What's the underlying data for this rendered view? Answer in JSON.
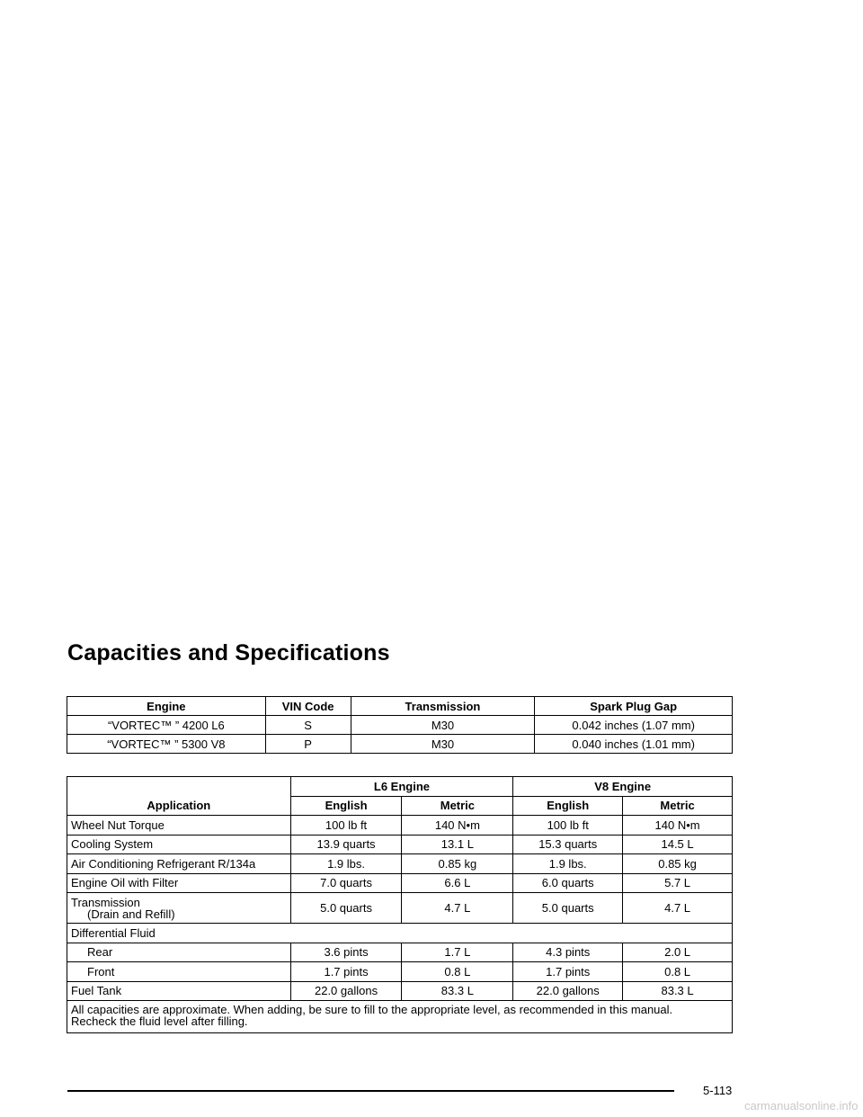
{
  "title": "Capacities and Specifications",
  "engine_table": {
    "headers": [
      "Engine",
      "VIN Code",
      "Transmission",
      "Spark Plug Gap"
    ],
    "rows": [
      [
        "“VORTEC™ ” 4200 L6",
        "S",
        "M30",
        "0.042 inches (1.07 mm)"
      ],
      [
        "“VORTEC™ ” 5300 V8",
        "P",
        "M30",
        "0.040 inches (1.01 mm)"
      ]
    ]
  },
  "capacity_table": {
    "application_header": "Application",
    "group_headers": [
      "L6 Engine",
      "V8 Engine"
    ],
    "sub_headers": [
      "English",
      "Metric",
      "English",
      "Metric"
    ],
    "rows": [
      {
        "label": "Wheel Nut Torque",
        "values": [
          "100 lb ft",
          "140 N•m",
          "100 lb ft",
          "140 N•m"
        ]
      },
      {
        "label": "Cooling System",
        "values": [
          "13.9 quarts",
          "13.1 L",
          "15.3 quarts",
          "14.5 L"
        ]
      },
      {
        "label": "Air Conditioning Refrigerant R/134a",
        "values": [
          "1.9 lbs.",
          "0.85 kg",
          "1.9 lbs.",
          "0.85 kg"
        ]
      },
      {
        "label": "Engine Oil with Filter",
        "values": [
          "7.0 quarts",
          "6.6 L",
          "6.0 quarts",
          "5.7 L"
        ]
      },
      {
        "label": "Transmission",
        "sublabel": "(Drain and Refill)",
        "values": [
          "5.0 quarts",
          "4.7 L",
          "5.0 quarts",
          "4.7 L"
        ]
      },
      {
        "label": "Differential Fluid"
      },
      {
        "label": "Rear",
        "values": [
          "3.6 pints",
          "1.7 L",
          "4.3 pints",
          "2.0 L"
        ]
      },
      {
        "label": "Front",
        "values": [
          "1.7 pints",
          "0.8 L",
          "1.7 pints",
          "0.8 L"
        ]
      },
      {
        "label": "Fuel Tank",
        "values": [
          "22.0 gallons",
          "83.3 L",
          "22.0 gallons",
          "83.3 L"
        ]
      }
    ],
    "note_line1": "All capacities are approximate. When adding, be sure to fill to the appropriate level, as recommended in this manual.",
    "note_line2": "Recheck the fluid level after filling."
  },
  "footer": {
    "page_number": "5-113",
    "watermark": "carmanualsonline.info"
  }
}
